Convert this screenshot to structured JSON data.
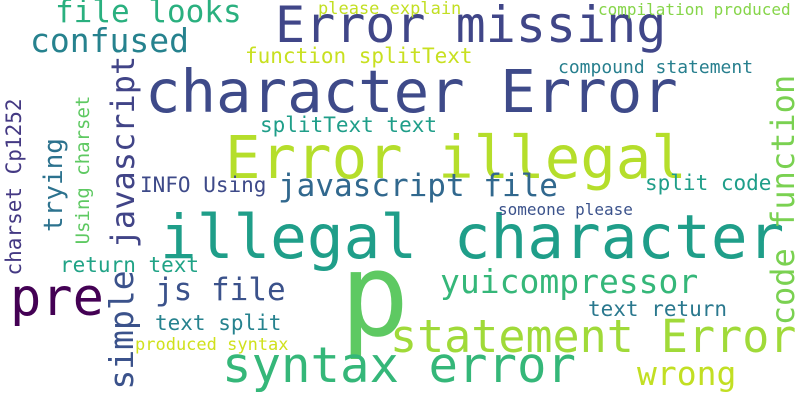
{
  "words": [
    "p",
    "illegal character",
    "character Error",
    "Error illegal",
    "Error missing",
    "syntax error",
    "statement Error",
    "pre",
    "javascript file",
    "confused",
    "file looks",
    "yuicompressor",
    "js file",
    "wrong",
    "javascript",
    "simple",
    "trying",
    "code function",
    "charset Cp1252",
    "Using charset",
    "function splitText",
    "compound statement",
    "please explain",
    "compilation produced",
    "splitText text",
    "INFO Using",
    "split code",
    "someone please",
    "return text",
    "text split",
    "text return",
    "produced syntax"
  ]
}
